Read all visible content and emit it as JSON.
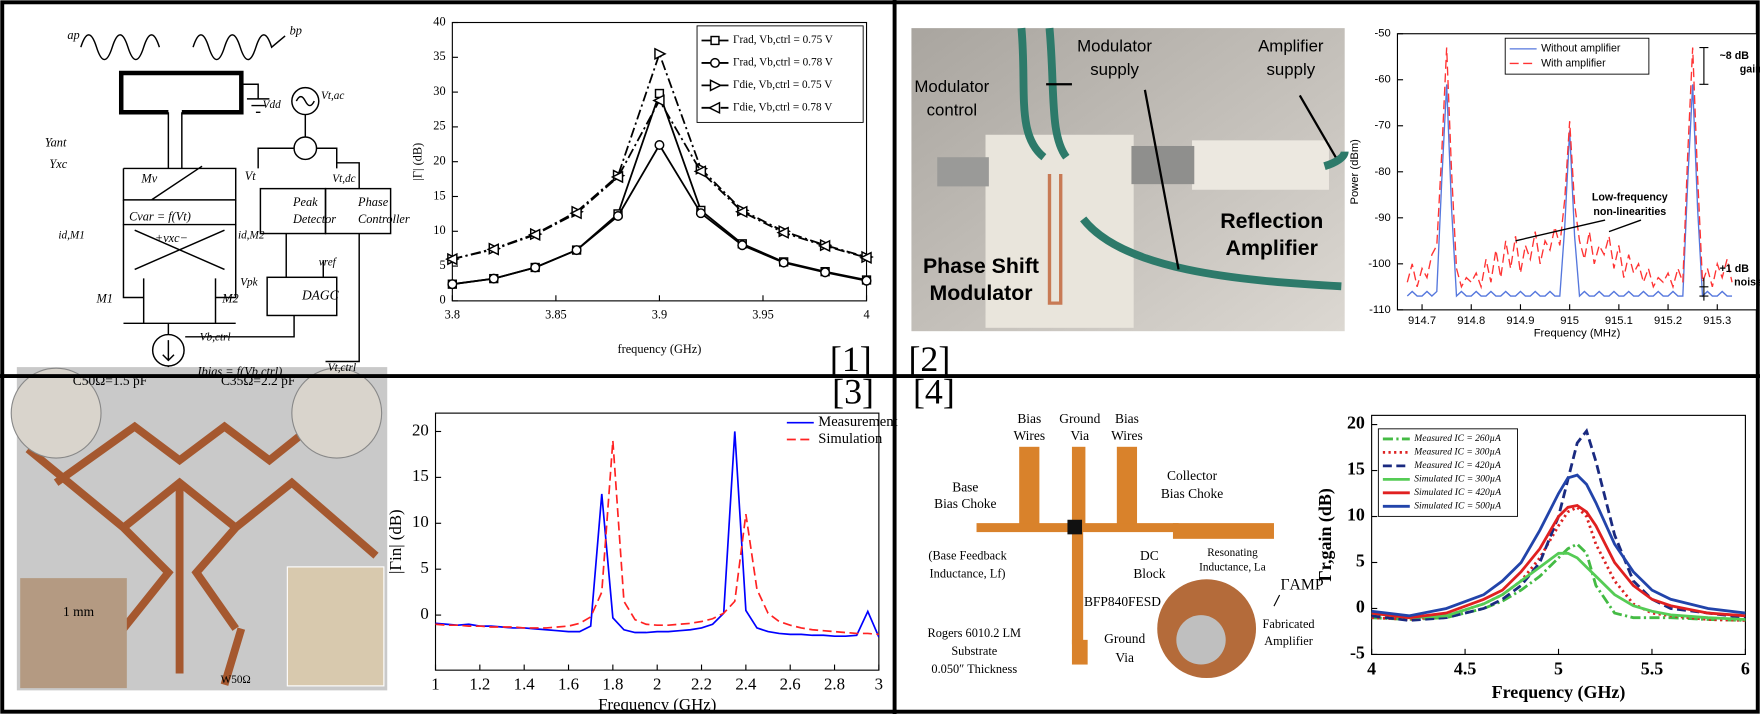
{
  "panel_labels": [
    "[1]",
    "[2]",
    "[3]",
    "[4]"
  ],
  "diagrams": [
    {
      "labels": [
        "ap",
        "bp",
        "Vdd",
        "Vt,ac",
        "Yant",
        "Yxc",
        "Mv",
        "Vt",
        "Vt,dc",
        "Cvar = f(Vt)",
        "+vxc−",
        "Peak",
        "Detector",
        "Phase",
        "Controller",
        "id,M1",
        "id,M2",
        "Vpk",
        "vref",
        "M1",
        "M2",
        "DAGC",
        "Vb,ctrl",
        "Vt,ctrl",
        "Ibias = f(Vb,ctrl)"
      ]
    },
    {
      "labels": [
        "Modulator",
        "control",
        "Modulator",
        "supply",
        "Amplifier",
        "supply",
        "Phase Shift",
        "Modulator",
        "Reflection",
        "Amplifier"
      ]
    },
    {
      "labels": [
        "C50Ω=1.5 pF",
        "C35Ω=2.2 pF",
        "1 mm",
        "W50Ω"
      ]
    },
    {
      "labels": [
        "Bias",
        "Wires",
        "Ground",
        "Via",
        "Bias",
        "Wires",
        "Base",
        "Bias Choke",
        "Collector",
        "Bias Choke",
        "(Base Feedback",
        "Inductance, Lf)",
        "DC",
        "Block",
        "Resonating",
        "Inductance, La",
        "ΓAMP",
        "BFP840FESD",
        "Fabricated",
        "Amplifier",
        "Rogers 6010.2 LM",
        "Substrate",
        "0.050″ Thickness",
        "Ground",
        "Via"
      ]
    }
  ],
  "chart_data": [
    {
      "type": "line",
      "x_label": "frequency (GHz)",
      "y_label": "|Γ| (dB)",
      "x": [
        3.8,
        3.82,
        3.84,
        3.86,
        3.88,
        3.9,
        3.92,
        3.94,
        3.96,
        3.98,
        4
      ],
      "xlim": [
        3.8,
        4
      ],
      "xticks": [
        3.8,
        3.85,
        3.9,
        3.95,
        4
      ],
      "ylim": [
        0,
        40
      ],
      "yticks": [
        0,
        5,
        10,
        15,
        20,
        25,
        30,
        35,
        40
      ],
      "legend": "upper right",
      "series": [
        {
          "name": "Γrad, Vb,ctrl = 0.75 V",
          "color": "#000000",
          "line_style": "solid",
          "marker": "square",
          "values": [
            2.4,
            3.2,
            4.8,
            7.3,
            12.5,
            29.8,
            13,
            8.2,
            5.6,
            4.2,
            3
          ]
        },
        {
          "name": "Γrad, Vb,ctrl = 0.78 V",
          "color": "#000000",
          "line_style": "solid",
          "marker": "circle",
          "values": [
            2.4,
            3.2,
            4.8,
            7.3,
            12.2,
            22.4,
            12.6,
            8,
            5.5,
            4.1,
            2.9
          ]
        },
        {
          "name": "Γdie, Vb,ctrl = 0.75 V",
          "color": "#000000",
          "line_style": "dashdot",
          "marker": "tri-right",
          "values": [
            6,
            7.5,
            9.6,
            12.8,
            18,
            35.5,
            19,
            13,
            10,
            8,
            6.3
          ]
        },
        {
          "name": "Γdie, Vb,ctrl = 0.78 V",
          "color": "#000000",
          "line_style": "dashdot",
          "marker": "tri-left",
          "values": [
            6,
            7.4,
            9.5,
            12.6,
            17.8,
            28.8,
            18.6,
            12.8,
            9.8,
            7.9,
            6.2
          ]
        }
      ]
    },
    {
      "type": "line",
      "x_label": "Frequency (MHz)",
      "y_label": "Power (dBm)",
      "x": [
        914.67,
        914.68,
        914.69,
        914.7,
        914.71,
        914.72,
        914.73,
        914.74,
        914.75,
        914.76,
        914.77,
        914.78,
        914.79,
        914.8,
        914.81,
        914.82,
        914.83,
        914.84,
        914.85,
        914.86,
        914.87,
        914.88,
        914.89,
        914.9,
        914.91,
        914.92,
        914.93,
        914.94,
        914.95,
        914.96,
        914.97,
        914.98,
        914.99,
        915,
        915.01,
        915.02,
        915.03,
        915.04,
        915.05,
        915.06,
        915.07,
        915.08,
        915.09,
        915.1,
        915.11,
        915.12,
        915.13,
        915.14,
        915.15,
        915.16,
        915.17,
        915.18,
        915.19,
        915.2,
        915.21,
        915.22,
        915.23,
        915.24,
        915.25,
        915.26,
        915.27,
        915.28,
        915.29,
        915.3,
        915.31,
        915.32,
        915.33
      ],
      "xlim": [
        914.65,
        915.38
      ],
      "xticks": [
        914.7,
        914.8,
        914.9,
        915,
        915.1,
        915.2,
        915.3
      ],
      "ylim": [
        -110,
        -50
      ],
      "yticks": [
        -110,
        -100,
        -90,
        -80,
        -70,
        -60,
        -50
      ],
      "legend": "upper center",
      "annotations": [
        "~8 dB",
        "gain",
        "Low-frequency",
        "non-linearities",
        "+1 dB",
        "noise"
      ],
      "series": [
        {
          "name": "Without amplifier",
          "color": "#5577dd",
          "line_style": "solid",
          "values": [
            -107,
            -106,
            -107,
            -107,
            -106,
            -107,
            -106,
            -82,
            -61,
            -88,
            -107,
            -106,
            -107,
            -107,
            -106,
            -107,
            -107,
            -106,
            -107,
            -107,
            -106,
            -107,
            -107,
            -106,
            -107,
            -107,
            -106,
            -107,
            -107,
            -106,
            -107,
            -107,
            -92,
            -71,
            -94,
            -107,
            -106,
            -107,
            -107,
            -106,
            -107,
            -107,
            -106,
            -107,
            -107,
            -106,
            -107,
            -107,
            -106,
            -107,
            -107,
            -106,
            -107,
            -107,
            -106,
            -107,
            -107,
            -82,
            -61,
            -88,
            -107,
            -106,
            -107,
            -107,
            -106,
            -107,
            -107
          ]
        },
        {
          "name": "With amplifier",
          "color": "#ff3333",
          "line_style": "dashed",
          "values": [
            -104,
            -100,
            -105,
            -101,
            -103,
            -98,
            -96,
            -76,
            -53,
            -80,
            -101,
            -105,
            -103,
            -104,
            -102,
            -105,
            -99,
            -104,
            -97,
            -103,
            -95,
            -101,
            -94,
            -102,
            -96,
            -99,
            -93,
            -100,
            -95,
            -97,
            -92,
            -96,
            -86,
            -69,
            -87,
            -95,
            -99,
            -93,
            -100,
            -96,
            -98,
            -94,
            -101,
            -96,
            -103,
            -98,
            -102,
            -100,
            -104,
            -101,
            -105,
            -103,
            -104,
            -102,
            -105,
            -101,
            -104,
            -76,
            -53,
            -81,
            -104,
            -101,
            -105,
            -100,
            -103,
            -99,
            -104
          ]
        }
      ]
    },
    {
      "type": "line",
      "x_label": "Frequency (GHz)",
      "y_label": "|Γin| (dB)",
      "x": [
        1,
        1.05,
        1.1,
        1.15,
        1.2,
        1.25,
        1.3,
        1.35,
        1.4,
        1.45,
        1.5,
        1.55,
        1.6,
        1.65,
        1.7,
        1.75,
        1.8,
        1.85,
        1.9,
        1.95,
        2,
        2.05,
        2.1,
        2.15,
        2.2,
        2.25,
        2.3,
        2.35,
        2.4,
        2.45,
        2.5,
        2.55,
        2.6,
        2.65,
        2.7,
        2.75,
        2.8,
        2.85,
        2.9,
        2.95,
        3
      ],
      "xlim": [
        1,
        3
      ],
      "xticks": [
        1,
        1.2,
        1.4,
        1.6,
        1.8,
        2,
        2.2,
        2.4,
        2.6,
        2.8,
        3
      ],
      "ylim": [
        -6,
        22
      ],
      "yticks": [
        0,
        5,
        10,
        15,
        20
      ],
      "legend": "upper right",
      "series": [
        {
          "name": "Measurement",
          "color": "#0000ff",
          "line_style": "solid",
          "values": [
            -0.9,
            -1.0,
            -1.1,
            -1.0,
            -1.2,
            -1.2,
            -1.3,
            -1.4,
            -1.4,
            -1.5,
            -1.6,
            -1.7,
            -1.8,
            -1.8,
            -1.2,
            13.2,
            -0.3,
            -1.6,
            -1.9,
            -1.9,
            -1.8,
            -1.8,
            -1.7,
            -1.6,
            -1.4,
            -1.0,
            0.2,
            20,
            0.5,
            -1.4,
            -1.8,
            -2.0,
            -2.1,
            -2.1,
            -2.2,
            -2.2,
            -2.3,
            -2.3,
            -2.2,
            0.4,
            -2.4
          ]
        },
        {
          "name": "Simulation",
          "color": "#ff2222",
          "line_style": "dashed",
          "values": [
            -1.0,
            -1.1,
            -1.1,
            -1.2,
            -1.2,
            -1.3,
            -1.3,
            -1.3,
            -1.4,
            -1.4,
            -1.4,
            -1.3,
            -1.2,
            -0.9,
            -0.2,
            2.5,
            19,
            1.5,
            -0.5,
            -1.0,
            -1.1,
            -1.1,
            -1.0,
            -0.9,
            -0.7,
            -0.4,
            0.2,
            1.5,
            11,
            2.8,
            0.2,
            -0.7,
            -1.1,
            -1.4,
            -1.6,
            -1.7,
            -1.8,
            -1.9,
            -2.0,
            -2.0,
            -2.1
          ]
        }
      ]
    },
    {
      "type": "line",
      "x_label": "Frequency (GHz)",
      "y_label": "Γr,gain (dB)",
      "x": [
        4,
        4.2,
        4.4,
        4.6,
        4.7,
        4.8,
        4.9,
        5,
        5.05,
        5.1,
        5.15,
        5.2,
        5.3,
        5.4,
        5.5,
        5.6,
        5.8,
        6
      ],
      "xlim": [
        4,
        6
      ],
      "xticks": [
        4,
        4.5,
        5,
        5.5,
        6
      ],
      "ylim": [
        -5,
        21
      ],
      "yticks": [
        -5,
        0,
        5,
        10,
        15,
        20
      ],
      "legend": "upper left",
      "series": [
        {
          "name": "Measured IC = 260µA",
          "color": "#44bb44",
          "line_style": "dashdot",
          "values": [
            -1,
            -1.2,
            -1,
            0,
            0.8,
            2,
            3.5,
            5.5,
            6.5,
            7,
            6,
            2.5,
            -0.5,
            -1,
            -1,
            -1,
            -1.2,
            -1.3
          ]
        },
        {
          "name": "Measured IC = 300µA",
          "color": "#dd2222",
          "line_style": "dotted",
          "values": [
            -1,
            -1.2,
            -0.8,
            0.5,
            1.5,
            3,
            5.5,
            9,
            10.5,
            11,
            10,
            7,
            3,
            0.5,
            -0.5,
            -0.8,
            -1.2,
            -1.3
          ]
        },
        {
          "name": "Measured IC = 420µA",
          "color": "#1a2a80",
          "line_style": "dashed",
          "values": [
            -0.8,
            -1.3,
            -1,
            0,
            1,
            2.5,
            5,
            10,
            14,
            18,
            19.3,
            16,
            8,
            3,
            1,
            0,
            -0.5,
            -1
          ]
        },
        {
          "name": "Simulated IC = 300µA",
          "color": "#55cc55",
          "line_style": "solid",
          "values": [
            -0.5,
            -1,
            -0.8,
            0.5,
            1.5,
            3,
            4.5,
            6,
            6,
            5.5,
            4.5,
            3.5,
            1.5,
            0.3,
            -0.3,
            -0.7,
            -1,
            -1.2
          ]
        },
        {
          "name": "Simulated IC = 420µA",
          "color": "#e02020",
          "line_style": "solid",
          "values": [
            -0.5,
            -1,
            -0.5,
            1,
            2,
            4,
            6.5,
            10,
            11,
            11.2,
            10.5,
            9,
            5,
            2.5,
            1,
            0.3,
            -0.5,
            -0.8
          ]
        },
        {
          "name": "Simulated IC = 500µA",
          "color": "#2244aa",
          "line_style": "solid",
          "values": [
            -0.3,
            -0.8,
            0,
            1.5,
            3,
            5,
            8.5,
            12.5,
            14.2,
            14.5,
            13.5,
            11.5,
            7,
            4,
            2,
            1,
            0,
            -0.5
          ]
        }
      ]
    }
  ]
}
